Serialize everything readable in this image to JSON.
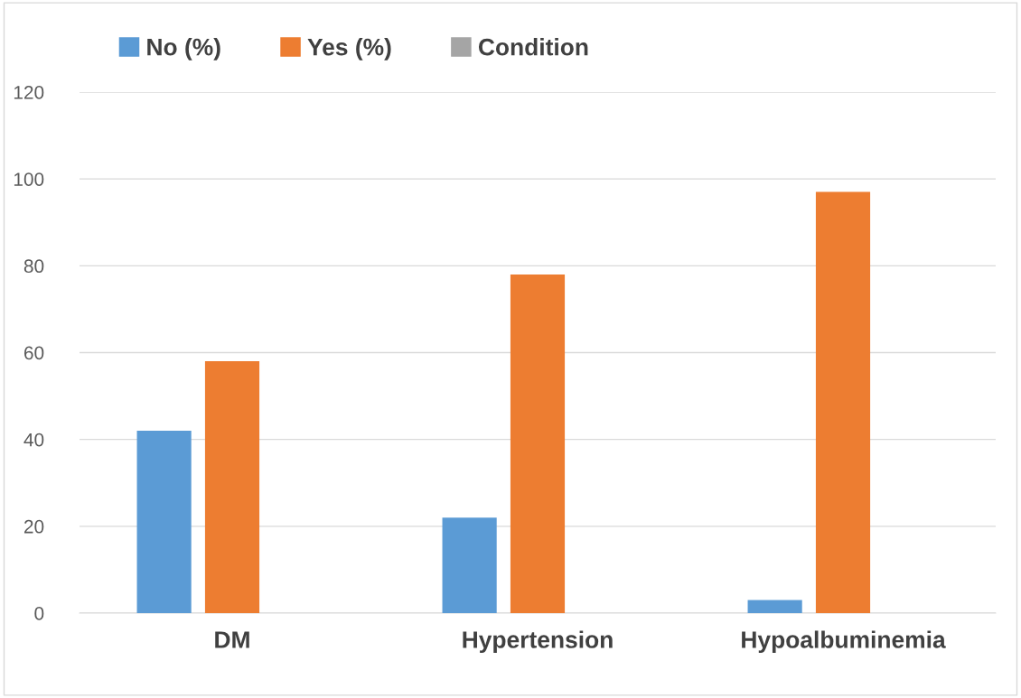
{
  "chart_data": {
    "type": "bar",
    "categories": [
      "DM",
      "Hypertension",
      "Hypoalbuminemia"
    ],
    "series": [
      {
        "name": "No (%)",
        "color": "#5b9bd5",
        "values": [
          42,
          22,
          3
        ]
      },
      {
        "name": "Yes (%)",
        "color": "#ed7d31",
        "values": [
          58,
          78,
          97
        ]
      },
      {
        "name": "Condition",
        "color": "#a5a5a5",
        "values": [
          null,
          null,
          null
        ]
      }
    ],
    "ylim": [
      0,
      120
    ],
    "yticks": [
      0,
      20,
      40,
      60,
      80,
      100,
      120
    ],
    "grid": "y",
    "legend": "top"
  }
}
